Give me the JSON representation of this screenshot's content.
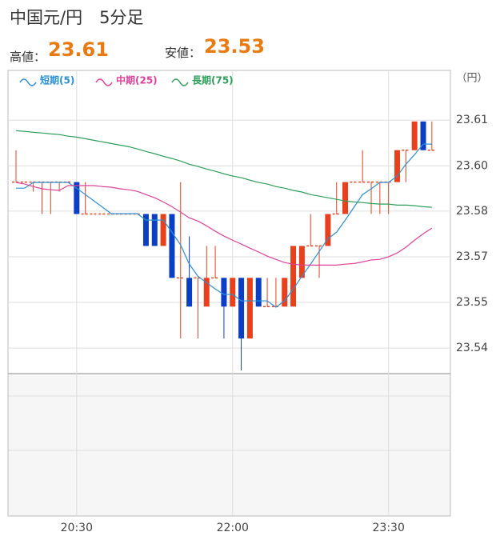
{
  "chart_data": {
    "type": "candlestick",
    "title": "中国元/円　5分足",
    "stats": [
      {
        "label": "高値：",
        "value": 23.61
      },
      {
        "label": "安値：",
        "value": 23.53
      }
    ],
    "y_unit": "（円）",
    "categories": [
      null,
      null,
      null,
      null,
      null,
      null,
      null,
      "20:30",
      null,
      null,
      null,
      null,
      null,
      null,
      null,
      null,
      null,
      null,
      null,
      null,
      null,
      null,
      null,
      null,
      null,
      "22:00",
      null,
      null,
      null,
      null,
      null,
      null,
      null,
      null,
      null,
      null,
      null,
      null,
      null,
      null,
      null,
      null,
      null,
      "23:30",
      null,
      null,
      null,
      null,
      null
    ],
    "open": [
      23.592,
      23.592,
      23.592,
      23.592,
      23.592,
      23.592,
      23.592,
      23.592,
      23.582,
      23.582,
      23.582,
      23.582,
      23.582,
      23.582,
      23.582,
      23.582,
      23.582,
      23.572,
      23.582,
      23.562,
      23.562,
      23.562,
      23.553,
      23.562,
      23.562,
      23.553,
      23.562,
      23.543,
      23.562,
      23.553,
      23.553,
      23.553,
      23.553,
      23.562,
      23.572,
      23.572,
      23.572,
      23.582,
      23.582,
      23.592,
      23.592,
      23.592,
      23.592,
      23.592,
      23.592,
      23.602,
      23.602,
      23.611,
      23.602
    ],
    "high": [
      23.602,
      23.592,
      23.592,
      23.592,
      23.592,
      23.592,
      23.592,
      23.592,
      23.592,
      23.582,
      23.582,
      23.582,
      23.582,
      23.582,
      23.582,
      23.582,
      23.582,
      23.582,
      23.582,
      23.592,
      23.575,
      23.562,
      23.572,
      23.572,
      23.562,
      23.562,
      23.562,
      23.562,
      23.562,
      23.562,
      23.562,
      23.562,
      23.572,
      23.572,
      23.582,
      23.572,
      23.582,
      23.592,
      23.592,
      23.592,
      23.602,
      23.592,
      23.592,
      23.592,
      23.602,
      23.602,
      23.611,
      23.611,
      23.611
    ],
    "low": [
      23.592,
      23.592,
      23.589,
      23.582,
      23.582,
      23.589,
      23.592,
      23.582,
      23.582,
      23.582,
      23.582,
      23.582,
      23.582,
      23.582,
      23.582,
      23.572,
      23.572,
      23.572,
      23.562,
      23.543,
      23.553,
      23.543,
      23.553,
      23.562,
      23.543,
      23.553,
      23.533,
      23.543,
      23.553,
      23.553,
      23.553,
      23.553,
      23.553,
      23.562,
      23.572,
      23.562,
      23.572,
      23.582,
      23.582,
      23.592,
      23.592,
      23.582,
      23.582,
      23.582,
      23.592,
      23.592,
      23.602,
      23.602,
      23.602
    ],
    "close": [
      23.592,
      23.592,
      23.592,
      23.592,
      23.592,
      23.592,
      23.592,
      23.582,
      23.582,
      23.582,
      23.582,
      23.582,
      23.582,
      23.582,
      23.582,
      23.572,
      23.572,
      23.582,
      23.562,
      23.562,
      23.553,
      23.562,
      23.562,
      23.562,
      23.553,
      23.562,
      23.543,
      23.562,
      23.553,
      23.553,
      23.553,
      23.562,
      23.572,
      23.572,
      23.572,
      23.572,
      23.582,
      23.582,
      23.592,
      23.592,
      23.592,
      23.592,
      23.592,
      23.592,
      23.602,
      23.602,
      23.611,
      23.602,
      23.602
    ],
    "up_color": "#e8401c",
    "down_color": "#0a3fc4",
    "series": [
      {
        "name": "短期(5)",
        "color": "#2a90d6",
        "values": [
          23.5901,
          23.5901,
          23.5919,
          23.5919,
          23.5919,
          23.5919,
          23.5919,
          23.5901,
          23.5881,
          23.5861,
          23.5841,
          23.5821,
          23.5821,
          23.5821,
          23.5821,
          23.5801,
          23.5801,
          23.5801,
          23.5763,
          23.5723,
          23.5663,
          23.5625,
          23.5605,
          23.5585,
          23.5568,
          23.5568,
          23.5548,
          23.5548,
          23.5548,
          23.5548,
          23.5528,
          23.5548,
          23.5585,
          23.5625,
          23.5663,
          23.5703,
          23.5743,
          23.5763,
          23.5801,
          23.5841,
          23.5881,
          23.5899,
          23.5919,
          23.5919,
          23.5939,
          23.5976,
          23.6006,
          23.6039,
          23.6039
        ]
      },
      {
        "name": "中期(25)",
        "color": "#e0409a",
        "values": [
          23.5919,
          23.5914,
          23.5906,
          23.5899,
          23.5896,
          23.5894,
          23.5909,
          23.5909,
          23.5909,
          23.5909,
          23.5906,
          23.5904,
          23.5899,
          23.5896,
          23.5891,
          23.5881,
          23.5871,
          23.5858,
          23.5843,
          23.5826,
          23.5808,
          23.5798,
          23.5783,
          23.5766,
          23.5751,
          23.5738,
          23.5726,
          23.5713,
          23.5701,
          23.5688,
          23.5678,
          23.5668,
          23.5663,
          23.566,
          23.566,
          23.566,
          23.566,
          23.566,
          23.5663,
          23.5665,
          23.567,
          23.5676,
          23.5678,
          23.5686,
          23.5698,
          23.5716,
          23.5738,
          23.5758,
          23.5776
        ]
      },
      {
        "name": "長期(75)",
        "color": "#2e9e5a",
        "values": [
          23.6081,
          23.6079,
          23.6076,
          23.6074,
          23.6071,
          23.6069,
          23.6064,
          23.6061,
          23.6056,
          23.6051,
          23.6046,
          23.6041,
          23.6036,
          23.6031,
          23.6024,
          23.6016,
          23.6009,
          23.6001,
          23.5994,
          23.5986,
          23.5976,
          23.5969,
          23.5961,
          23.5954,
          23.5946,
          23.5939,
          23.5934,
          23.5926,
          23.5919,
          23.5914,
          23.5906,
          23.5901,
          23.5894,
          23.5889,
          23.5881,
          23.5876,
          23.5871,
          23.5866,
          23.5861,
          23.5858,
          23.5856,
          23.5853,
          23.5851,
          23.5851,
          23.5848,
          23.5848,
          23.5846,
          23.5843,
          23.5841
        ]
      }
    ],
    "ylim": [
      23.532,
      23.627
    ],
    "yticks": [
      {
        "value": 23.6114,
        "label": "23.61"
      },
      {
        "value": 23.5971,
        "label": "23.60"
      },
      {
        "value": 23.5829,
        "label": "23.58"
      },
      {
        "value": 23.5686,
        "label": "23.57"
      },
      {
        "value": 23.5543,
        "label": "23.55"
      },
      23.54
    ],
    "grid": true
  }
}
